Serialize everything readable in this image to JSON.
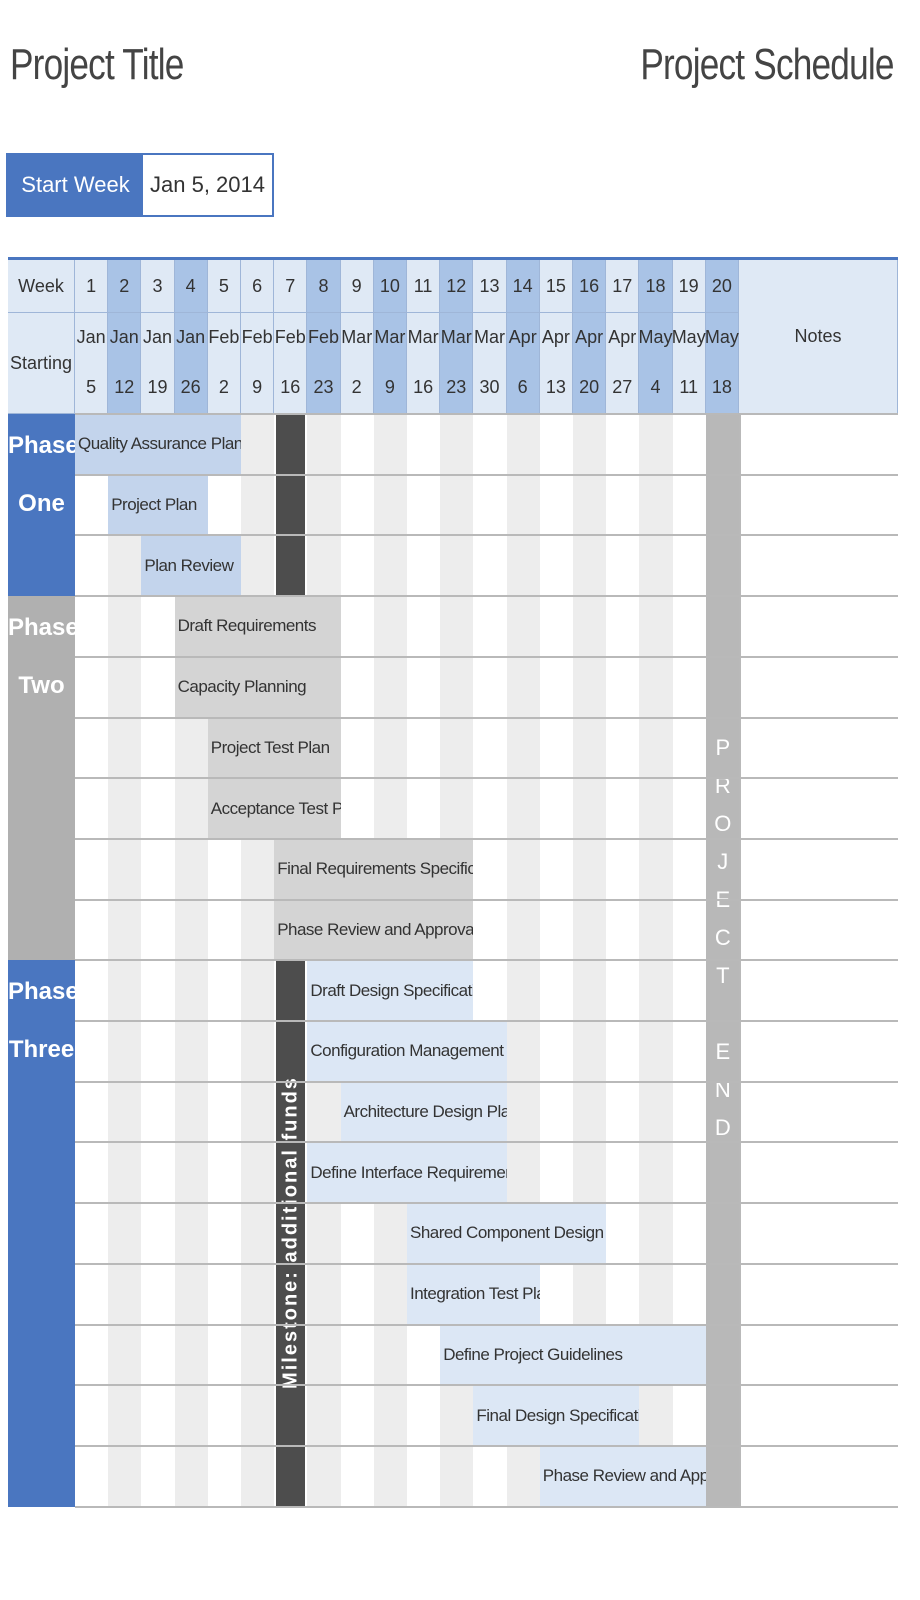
{
  "header": {
    "title": "Project Title",
    "schedule_label": "Project Schedule"
  },
  "start": {
    "label": "Start Week",
    "value": "Jan 5, 2014"
  },
  "table": {
    "week_label": "Week",
    "starting_label": "Starting",
    "notes_label": "Notes",
    "weeks": [
      {
        "n": "1",
        "m": "Jan",
        "d": "5"
      },
      {
        "n": "2",
        "m": "Jan",
        "d": "12"
      },
      {
        "n": "3",
        "m": "Jan",
        "d": "19"
      },
      {
        "n": "4",
        "m": "Jan",
        "d": "26"
      },
      {
        "n": "5",
        "m": "Feb",
        "d": "2"
      },
      {
        "n": "6",
        "m": "Feb",
        "d": "9"
      },
      {
        "n": "7",
        "m": "Feb",
        "d": "16"
      },
      {
        "n": "8",
        "m": "Feb",
        "d": "23"
      },
      {
        "n": "9",
        "m": "Mar",
        "d": "2"
      },
      {
        "n": "10",
        "m": "Mar",
        "d": "9"
      },
      {
        "n": "11",
        "m": "Mar",
        "d": "16"
      },
      {
        "n": "12",
        "m": "Mar",
        "d": "23"
      },
      {
        "n": "13",
        "m": "Mar",
        "d": "30"
      },
      {
        "n": "14",
        "m": "Apr",
        "d": "6"
      },
      {
        "n": "15",
        "m": "Apr",
        "d": "13"
      },
      {
        "n": "16",
        "m": "Apr",
        "d": "20"
      },
      {
        "n": "17",
        "m": "Apr",
        "d": "27"
      },
      {
        "n": "18",
        "m": "May",
        "d": "4"
      },
      {
        "n": "19",
        "m": "May",
        "d": "11"
      },
      {
        "n": "20",
        "m": "May",
        "d": "18"
      }
    ]
  },
  "phases": [
    {
      "label": [
        "Phase",
        "One"
      ],
      "color": "#4a76c0",
      "tasks": [
        {
          "name": "Quality Assurance Plan",
          "start": 1,
          "end": 5
        },
        {
          "name": "Project Plan",
          "start": 2,
          "end": 4
        },
        {
          "name": "Plan Review",
          "start": 3,
          "end": 5
        }
      ]
    },
    {
      "label": [
        "Phase",
        "Two"
      ],
      "color": "#b0b0b0",
      "tasks": [
        {
          "name": "Draft Requirements",
          "start": 4,
          "end": 8
        },
        {
          "name": "Capacity Planning",
          "start": 4,
          "end": 8
        },
        {
          "name": "Project Test Plan",
          "start": 5,
          "end": 8
        },
        {
          "name": "Acceptance Test Plan",
          "start": 5,
          "end": 8
        },
        {
          "name": "Final Requirements Specifications",
          "start": 7,
          "end": 12
        },
        {
          "name": "Phase Review and Approval",
          "start": 7,
          "end": 12
        }
      ]
    },
    {
      "label": [
        "Phase",
        "Three"
      ],
      "color": "#4a76c0",
      "tasks": [
        {
          "name": "Draft Design Specifications",
          "start": 8,
          "end": 12
        },
        {
          "name": "Configuration Management Plan",
          "start": 8,
          "end": 13
        },
        {
          "name": "Architecture Design Plan",
          "start": 9,
          "end": 13
        },
        {
          "name": "Define Interface Requirements",
          "start": 8,
          "end": 13
        },
        {
          "name": "Shared Component Design",
          "start": 11,
          "end": 16
        },
        {
          "name": "Integration Test Plan",
          "start": 11,
          "end": 14
        },
        {
          "name": "Define Project Guidelines",
          "start": 12,
          "end": 20
        },
        {
          "name": "Final Design Specifications",
          "start": 13,
          "end": 17
        },
        {
          "name": "Phase Review and Approval",
          "start": 15,
          "end": 20
        }
      ]
    }
  ],
  "milestone": {
    "week": 7,
    "label": "Milestone: additional funds"
  },
  "project_end": {
    "week": 20,
    "letters": [
      "P",
      "R",
      "O",
      "J",
      "E",
      "C",
      "T",
      "",
      "E",
      "N",
      "D"
    ]
  },
  "colors": {
    "blue": "#4a76c0",
    "light_blue": "#dce7f5",
    "grey": "#b0b0b0",
    "light_grey": "#d4d4d4",
    "dark": "#4d4d4d",
    "stripe": "#ededed"
  }
}
